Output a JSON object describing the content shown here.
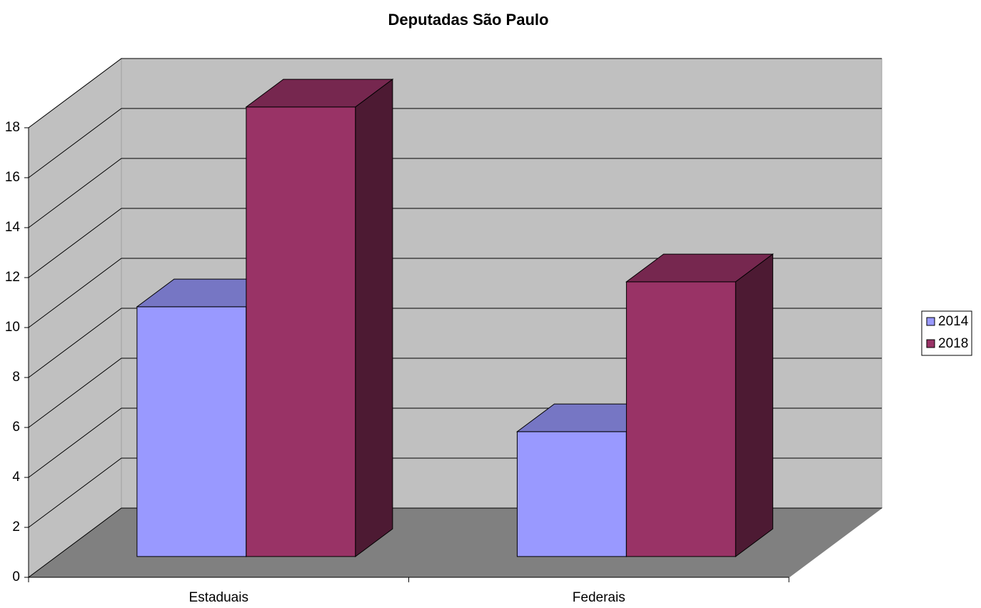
{
  "chart_data": {
    "type": "bar3d",
    "title": "Deputadas São Paulo",
    "categories": [
      "Estaduais",
      "Federais"
    ],
    "series": [
      {
        "name": "2014",
        "color": "#9999ff",
        "values": [
          10,
          5
        ]
      },
      {
        "name": "2018",
        "color": "#993366",
        "values": [
          18,
          11
        ]
      }
    ],
    "ylim": [
      0,
      18
    ],
    "yticks": [
      0,
      2,
      4,
      6,
      8,
      10,
      12,
      14,
      16,
      18
    ],
    "grid": true,
    "legend": "right"
  }
}
